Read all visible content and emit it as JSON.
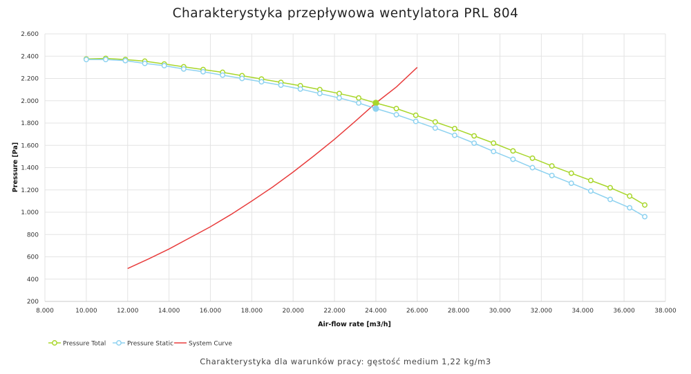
{
  "chart_data": {
    "type": "line",
    "title": "Charakterystyka przepływowa wentylatora PRL 804",
    "xlabel": "Air-flow rate [m3/h]",
    "ylabel": "Pressure [Pa]",
    "xlim": [
      8000,
      38000
    ],
    "ylim": [
      200,
      2600
    ],
    "x_ticks": [
      "8.000",
      "10.000",
      "12.000",
      "14.000",
      "16.000",
      "18.000",
      "20.000",
      "22.000",
      "24.000",
      "26.000",
      "28.000",
      "30.000",
      "32.000",
      "34.000",
      "36.000",
      "38.000"
    ],
    "y_ticks": [
      "200",
      "400",
      "600",
      "800",
      "1.000",
      "1.200",
      "1.400",
      "1.600",
      "1.800",
      "2.000",
      "2.200",
      "2.400",
      "2.600"
    ],
    "x_tick_values": [
      8000,
      10000,
      12000,
      14000,
      16000,
      18000,
      20000,
      22000,
      24000,
      26000,
      28000,
      30000,
      32000,
      34000,
      36000,
      38000
    ],
    "y_tick_values": [
      200,
      400,
      600,
      800,
      1000,
      1200,
      1400,
      1600,
      1800,
      2000,
      2200,
      2400,
      2600
    ],
    "grid": true,
    "legend_position": "bottom-left",
    "series": [
      {
        "name": "Pressure Total",
        "color": "#a8d62a",
        "marker": "open-circle",
        "x": [
          10000,
          10940,
          11890,
          12830,
          13770,
          14710,
          15650,
          16590,
          17530,
          18470,
          19410,
          20350,
          21290,
          22230,
          23170,
          24000,
          24990,
          25930,
          26870,
          27810,
          28750,
          29690,
          30630,
          31570,
          32510,
          33450,
          34390,
          35330,
          36270,
          37000
        ],
        "y": [
          2375,
          2380,
          2370,
          2355,
          2330,
          2305,
          2280,
          2255,
          2225,
          2195,
          2165,
          2135,
          2100,
          2065,
          2025,
          1980,
          1930,
          1870,
          1810,
          1750,
          1685,
          1620,
          1550,
          1485,
          1415,
          1350,
          1285,
          1220,
          1145,
          1065
        ]
      },
      {
        "name": "Pressure Static",
        "color": "#8ed2f0",
        "marker": "open-circle",
        "x": [
          10000,
          10940,
          11890,
          12830,
          13770,
          14710,
          15650,
          16590,
          17530,
          18470,
          19410,
          20350,
          21290,
          22230,
          23170,
          24000,
          24990,
          25930,
          26870,
          27810,
          28750,
          29690,
          30630,
          31570,
          32510,
          33450,
          34390,
          35330,
          36270,
          37000
        ],
        "y": [
          2370,
          2370,
          2360,
          2335,
          2315,
          2285,
          2260,
          2230,
          2200,
          2170,
          2140,
          2105,
          2065,
          2025,
          1980,
          1930,
          1875,
          1815,
          1755,
          1690,
          1620,
          1545,
          1475,
          1400,
          1330,
          1260,
          1190,
          1115,
          1040,
          960
        ]
      },
      {
        "name": "System Curve",
        "color": "#e83c3c",
        "marker": "none",
        "x": [
          12000,
          13000,
          14000,
          15000,
          16000,
          17000,
          18000,
          19000,
          20000,
          21000,
          22000,
          23000,
          24000,
          25000,
          26000
        ],
        "y": [
          495,
          580,
          670,
          770,
          870,
          980,
          1100,
          1225,
          1360,
          1505,
          1655,
          1815,
          1980,
          2125,
          2300
        ]
      }
    ],
    "operating_point": {
      "x": 24000,
      "total": 1980,
      "static": 1930
    }
  },
  "footnote": "Charakterystyka dla warunków pracy: gęstość medium 1,22 kg/m3"
}
